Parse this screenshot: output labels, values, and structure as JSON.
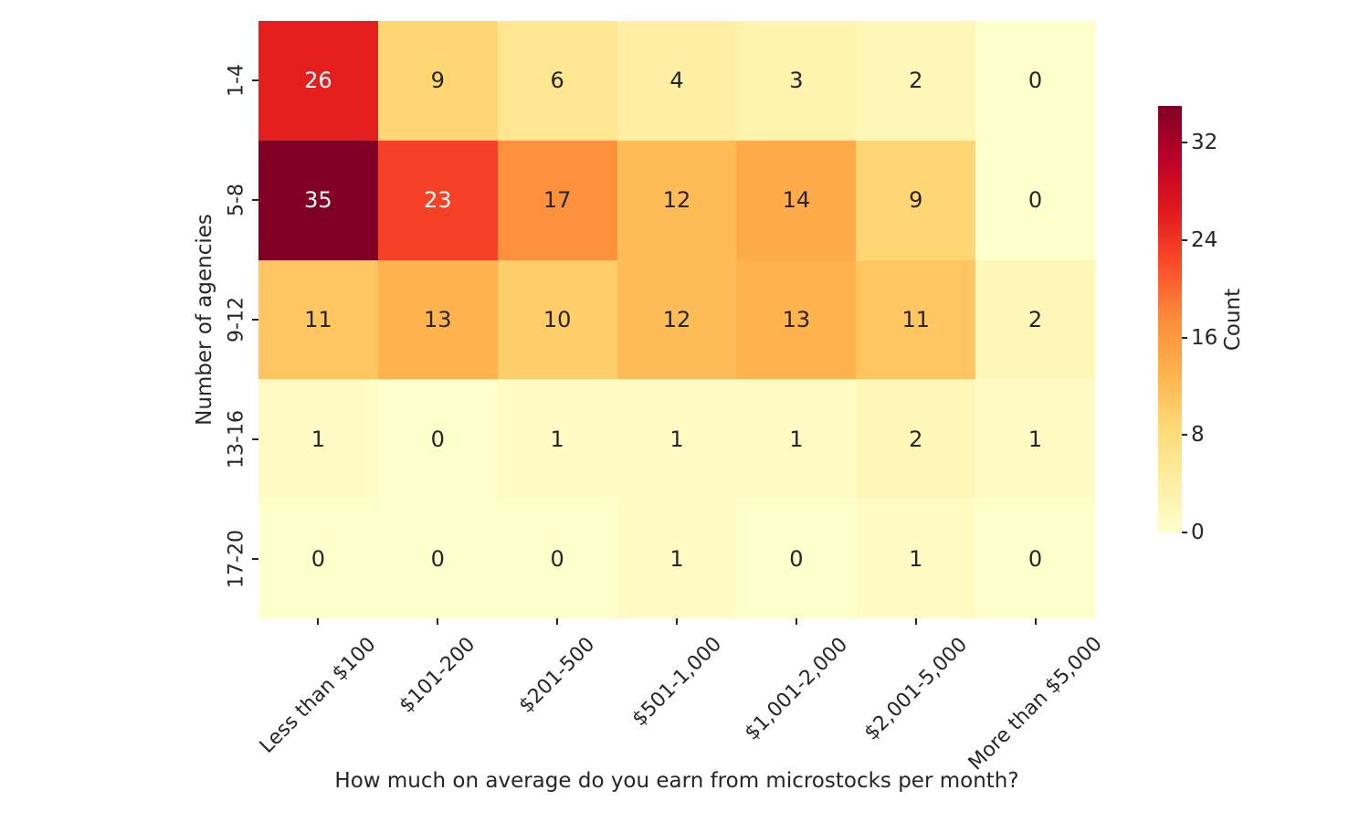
{
  "chart_data": {
    "type": "heatmap",
    "xlabel": "How much on average do you earn from microstocks per month?",
    "ylabel": "Number of agencies",
    "x_categories": [
      "Less than $100",
      "$101-200",
      "$201-500",
      "$501-1,000",
      "$1,001-2,000",
      "$2,001-5,000",
      "More than $5,000"
    ],
    "y_categories": [
      "1-4",
      "5-8",
      "9-12",
      "13-16",
      "17-20"
    ],
    "values": [
      [
        26,
        9,
        6,
        4,
        3,
        2,
        0
      ],
      [
        35,
        23,
        17,
        12,
        14,
        9,
        0
      ],
      [
        11,
        13,
        10,
        12,
        13,
        11,
        2
      ],
      [
        1,
        0,
        1,
        1,
        1,
        2,
        1
      ],
      [
        0,
        0,
        0,
        1,
        0,
        1,
        0
      ]
    ],
    "vmin": 0,
    "vmax": 35,
    "grid": false,
    "x_tick_rotation_deg": 45,
    "y_tick_rotation_deg": 90,
    "legend_position": "right-colorbar",
    "colorbar": {
      "label": "Count",
      "ticks": [
        0,
        8,
        16,
        24,
        32
      ]
    },
    "colormap": {
      "name": "YlOrRd",
      "stops": [
        "#ffffcc",
        "#ffeda0",
        "#fed976",
        "#feb24c",
        "#fd8d3c",
        "#fc4e2a",
        "#e31a1c",
        "#bd0026",
        "#800026"
      ]
    },
    "annotation_text_colors": {
      "light": "#ffffff",
      "dark": "#262626"
    }
  }
}
